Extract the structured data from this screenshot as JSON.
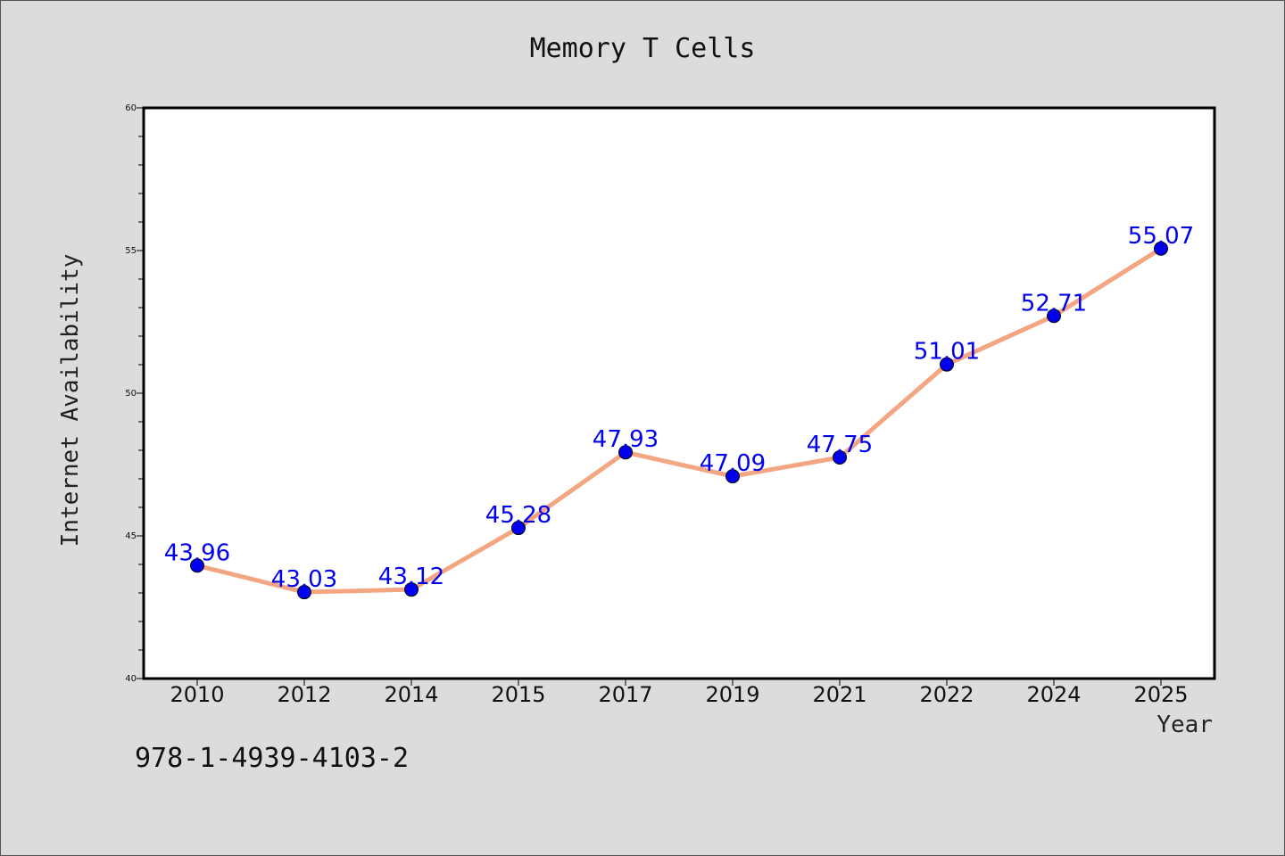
{
  "chart_data": {
    "type": "line",
    "title": "Memory T Cells",
    "xlabel": "Year",
    "ylabel": "Internet Availability",
    "categories": [
      "2010",
      "2012",
      "2014",
      "2015",
      "2017",
      "2019",
      "2021",
      "2022",
      "2024",
      "2025"
    ],
    "values": [
      43.96,
      43.03,
      43.12,
      45.28,
      47.93,
      47.09,
      47.75,
      51.01,
      52.71,
      55.07
    ],
    "data_labels": [
      "43.96",
      "43.03",
      "43.12",
      "45.28",
      "47.93",
      "47.09",
      "47.75",
      "51.01",
      "52.71",
      "55.07"
    ],
    "ylim": [
      40,
      60
    ],
    "yticks": [
      "40",
      "45",
      "50",
      "55",
      "60"
    ],
    "grid": false,
    "legend": "none",
    "colors": {
      "line": "#f4a582",
      "marker": "#0000ee",
      "label": "#0000ee",
      "plot_bg": "#ffffff",
      "page_bg": "#dcdcdc"
    }
  },
  "footer": {
    "isbn": "978-1-4939-4103-2"
  }
}
